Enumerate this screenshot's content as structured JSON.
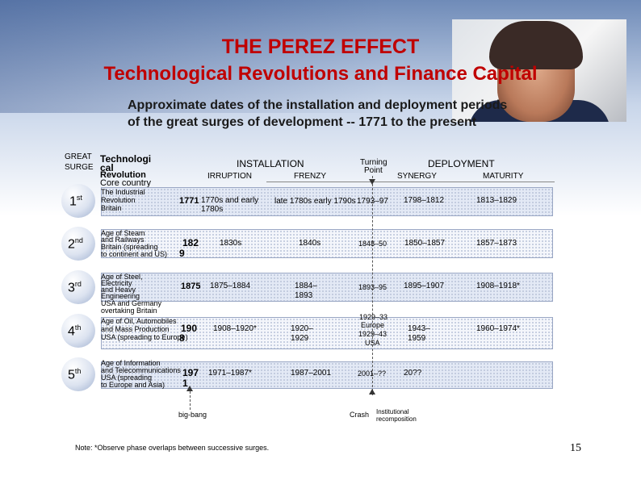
{
  "title": {
    "line1": "THE PEREZ EFFECT",
    "line2": "Technological Revolutions and Finance Capital"
  },
  "subtitle": {
    "line1": "Approximate dates of the installation and deployment periods",
    "line2": "of the great surges of development -- 1771 to the present"
  },
  "headers": {
    "great": "GREAT",
    "surge": "SURGE",
    "tech1": "Technologi",
    "tech2": "cal",
    "tech3": "Revolution",
    "tech4": "Core country",
    "installation": "INSTALLATION",
    "irruption": "IRRUPTION",
    "frenzy": "FRENZY",
    "turning1": "Turning",
    "turning2": "Point",
    "deployment": "DEPLOYMENT",
    "synergy": "SYNERGY",
    "maturity": "MATURITY"
  },
  "surges": [
    {
      "num": "1",
      "ord": "st",
      "rev": [
        "The Industrial",
        "Revolution",
        "Britain"
      ],
      "year_a": "1771",
      "year_b": "",
      "irruption": [
        "1770s and early",
        "1780s"
      ],
      "frenzy": [
        "late 1780s early 1790s"
      ],
      "turning": [
        "1793–97"
      ],
      "synergy": [
        "1798–1812"
      ],
      "maturity": [
        "1813–1829"
      ]
    },
    {
      "num": "2",
      "ord": "nd",
      "rev": [
        "Age of Steam",
        "and Railways",
        "Britain (spreading",
        "to continent and US)"
      ],
      "year_a": "182",
      "year_b": "9",
      "irruption": [
        "1830s"
      ],
      "frenzy": [
        "1840s"
      ],
      "turning": [
        "1848–50"
      ],
      "synergy": [
        "1850–1857"
      ],
      "maturity": [
        "1857–1873"
      ]
    },
    {
      "num": "3",
      "ord": "rd",
      "rev": [
        "Age of Steel,",
        "Electricity",
        "and Heavy",
        "Engineering",
        "USA and Germany",
        "overtaking Britain"
      ],
      "year_a": "1875",
      "year_b": "",
      "irruption": [
        "1875–1884"
      ],
      "frenzy": [
        "1884–",
        "1893"
      ],
      "turning": [
        "1893–95"
      ],
      "synergy": [
        "1895–1907"
      ],
      "maturity": [
        "1908–1918*"
      ]
    },
    {
      "num": "4",
      "ord": "th",
      "rev": [
        "Age of Oil, Automobiles",
        "and Mass Production",
        "USA (spreading to Europe)"
      ],
      "year_a": "190",
      "year_b": "8",
      "irruption": [
        "1908–1920*"
      ],
      "frenzy": [
        "1920–",
        "1929"
      ],
      "turning": [
        "1929–33",
        "Europe",
        "1929–43",
        "USA"
      ],
      "synergy": [
        "1943–",
        "1959"
      ],
      "maturity": [
        "1960–1974*"
      ]
    },
    {
      "num": "5",
      "ord": "th",
      "rev": [
        "Age of Information",
        "and Telecommunications",
        "USA (spreading",
        "to Europe and Asia)"
      ],
      "year_a": "197",
      "year_b": "1",
      "irruption": [
        "1971–1987*"
      ],
      "frenzy": [
        "1987–2001"
      ],
      "turning": [
        "2001–??"
      ],
      "synergy": [
        "20??"
      ],
      "maturity": []
    }
  ],
  "labels": {
    "big_bang": "big-bang",
    "crash": "Crash",
    "inst1": "Institutional",
    "inst2": "recomposition"
  },
  "note": "Note: *Observe phase overlaps between successive surges.",
  "page_number": "15",
  "colors": {
    "title": "#c00000",
    "band_border": "#9aa7c4"
  }
}
